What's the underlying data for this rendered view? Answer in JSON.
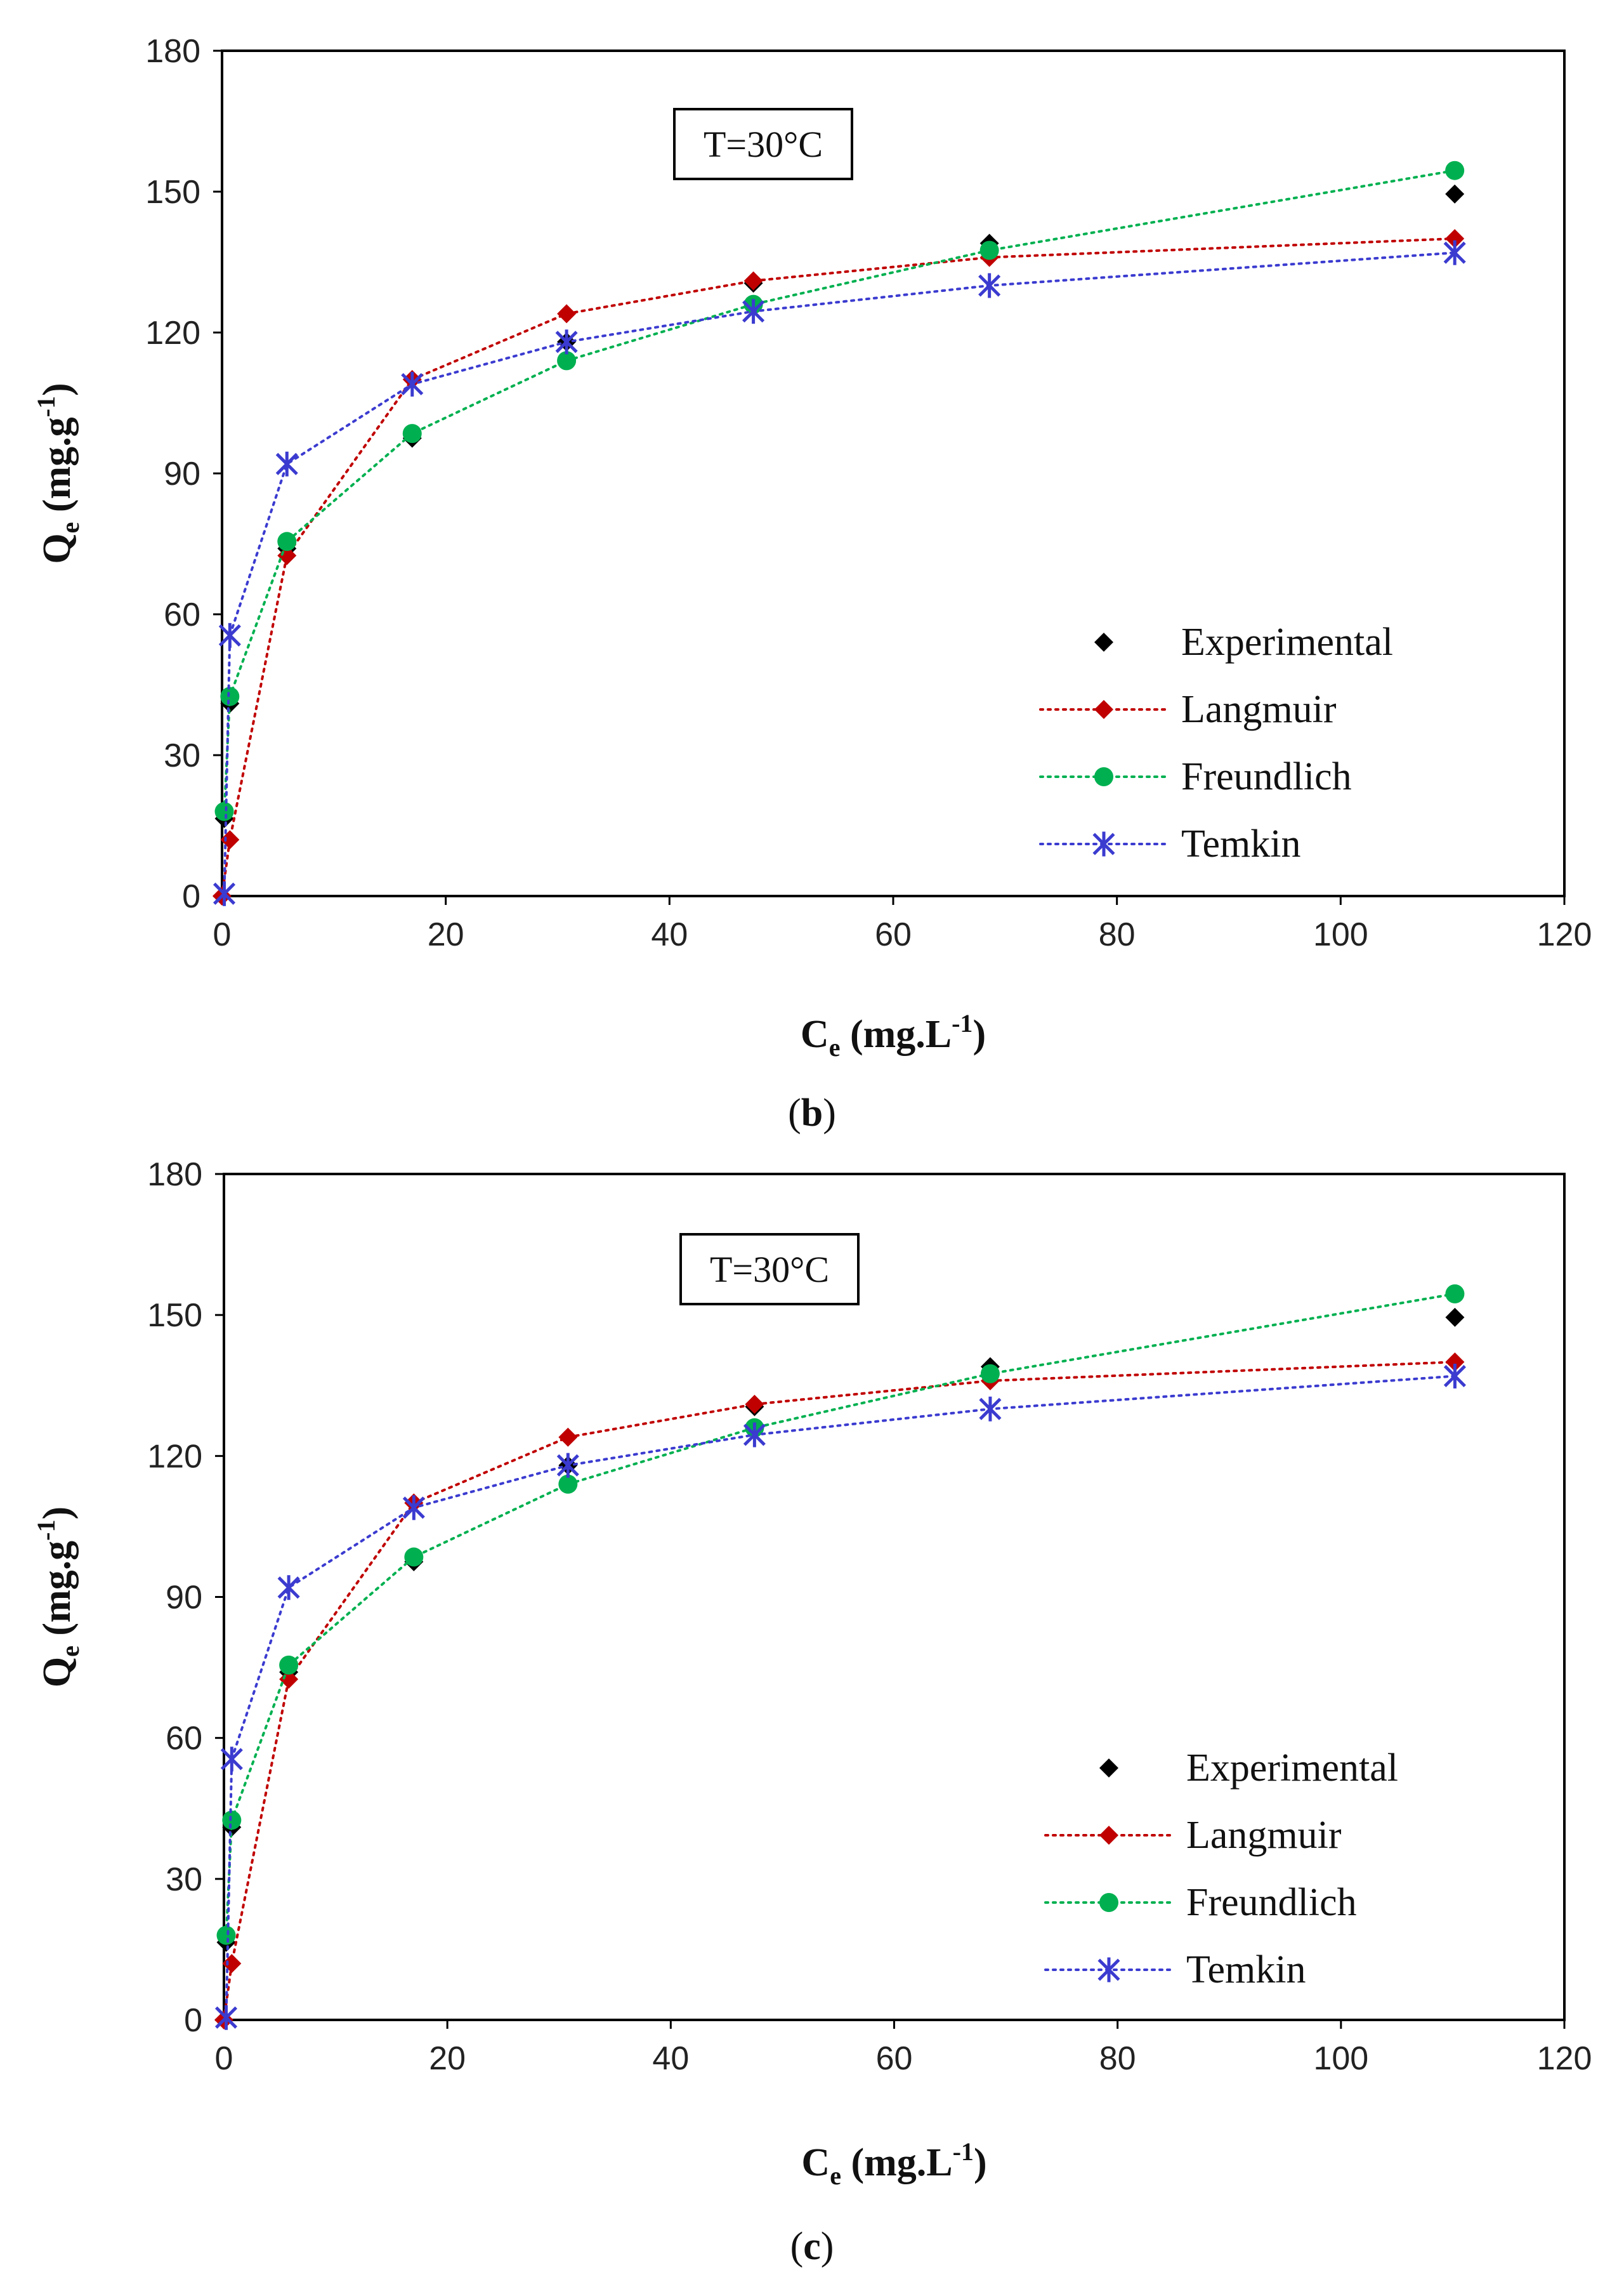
{
  "chart_data": [
    {
      "type": "scatter",
      "panel_label": "(b)",
      "annotation": "T=30°C",
      "xlabel": "C_e (mg.L^-1)",
      "ylabel": "Q_e (mg.g^-1)",
      "xlim": [
        0,
        120
      ],
      "ylim": [
        0,
        180
      ],
      "xticks": [
        0,
        20,
        40,
        60,
        80,
        100,
        120
      ],
      "yticks": [
        0,
        30,
        60,
        90,
        120,
        150,
        180
      ],
      "grid": false,
      "legend_position": "bottom-right",
      "series": [
        {
          "name": "Experimental",
          "marker": "diamond",
          "line": false,
          "color": "#000000",
          "x": [
            0.2,
            0.7,
            5.8,
            17.0,
            30.8,
            47.5,
            68.6,
            110.2
          ],
          "y": [
            16.5,
            41,
            74,
            97.5,
            118,
            130.5,
            139,
            149.5
          ]
        },
        {
          "name": "Langmuir",
          "marker": "diamond",
          "line": true,
          "color": "#c00000",
          "x": [
            0,
            0.7,
            5.8,
            17.0,
            30.8,
            47.5,
            68.6,
            110.2
          ],
          "y": [
            0,
            12,
            72.5,
            110,
            124,
            131,
            136,
            140
          ]
        },
        {
          "name": "Freundlich",
          "marker": "circle",
          "line": true,
          "color": "#00b050",
          "x": [
            0.2,
            0.7,
            5.8,
            17.0,
            30.8,
            47.5,
            68.6,
            110.2
          ],
          "y": [
            18,
            42.5,
            75.5,
            98.5,
            114,
            126,
            137.5,
            154.5
          ]
        },
        {
          "name": "Temkin",
          "marker": "star",
          "line": true,
          "color": "#3b3bd0",
          "x": [
            0.2,
            0.7,
            5.8,
            17.0,
            30.8,
            47.5,
            68.6,
            110.2
          ],
          "y": [
            0.5,
            55.5,
            92,
            109,
            118,
            124.5,
            130,
            137
          ]
        }
      ]
    },
    {
      "type": "scatter",
      "panel_label": "(c)",
      "annotation": "T=30°C",
      "xlabel": "C_e (mg.L^-1)",
      "ylabel": "Q_e (mg.g^-1)",
      "xlim": [
        0,
        120
      ],
      "ylim": [
        0,
        180
      ],
      "xticks": [
        0,
        20,
        40,
        60,
        80,
        100,
        120
      ],
      "yticks": [
        0,
        30,
        60,
        90,
        120,
        150,
        180
      ],
      "grid": false,
      "legend_position": "bottom-right",
      "series": [
        {
          "name": "Experimental",
          "marker": "diamond",
          "line": false,
          "color": "#000000",
          "x": [
            0.2,
            0.7,
            5.8,
            17.0,
            30.8,
            47.5,
            68.6,
            110.2
          ],
          "y": [
            16.5,
            41,
            74,
            97.5,
            118,
            130.5,
            139,
            149.5
          ]
        },
        {
          "name": "Langmuir",
          "marker": "diamond",
          "line": true,
          "color": "#c00000",
          "x": [
            0,
            0.7,
            5.8,
            17.0,
            30.8,
            47.5,
            68.6,
            110.2
          ],
          "y": [
            0,
            12,
            72.5,
            110,
            124,
            131,
            136,
            140
          ]
        },
        {
          "name": "Freundlich",
          "marker": "circle",
          "line": true,
          "color": "#00b050",
          "x": [
            0.2,
            0.7,
            5.8,
            17.0,
            30.8,
            47.5,
            68.6,
            110.2
          ],
          "y": [
            18,
            42.5,
            75.5,
            98.5,
            114,
            126,
            137.5,
            154.5
          ]
        },
        {
          "name": "Temkin",
          "marker": "star",
          "line": true,
          "color": "#3b3bd0",
          "x": [
            0.2,
            0.7,
            5.8,
            17.0,
            30.8,
            47.5,
            68.6,
            110.2
          ],
          "y": [
            0.5,
            55.5,
            92,
            109,
            118,
            124.5,
            130,
            137
          ]
        }
      ]
    }
  ]
}
